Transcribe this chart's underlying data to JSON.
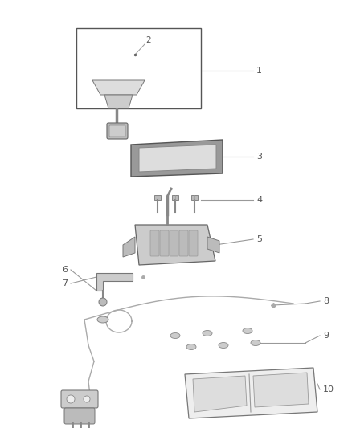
{
  "background_color": "#ffffff",
  "fig_width": 4.38,
  "fig_height": 5.33,
  "dpi": 100,
  "lc": "#999999",
  "dc": "#666666",
  "nc": "#555555"
}
